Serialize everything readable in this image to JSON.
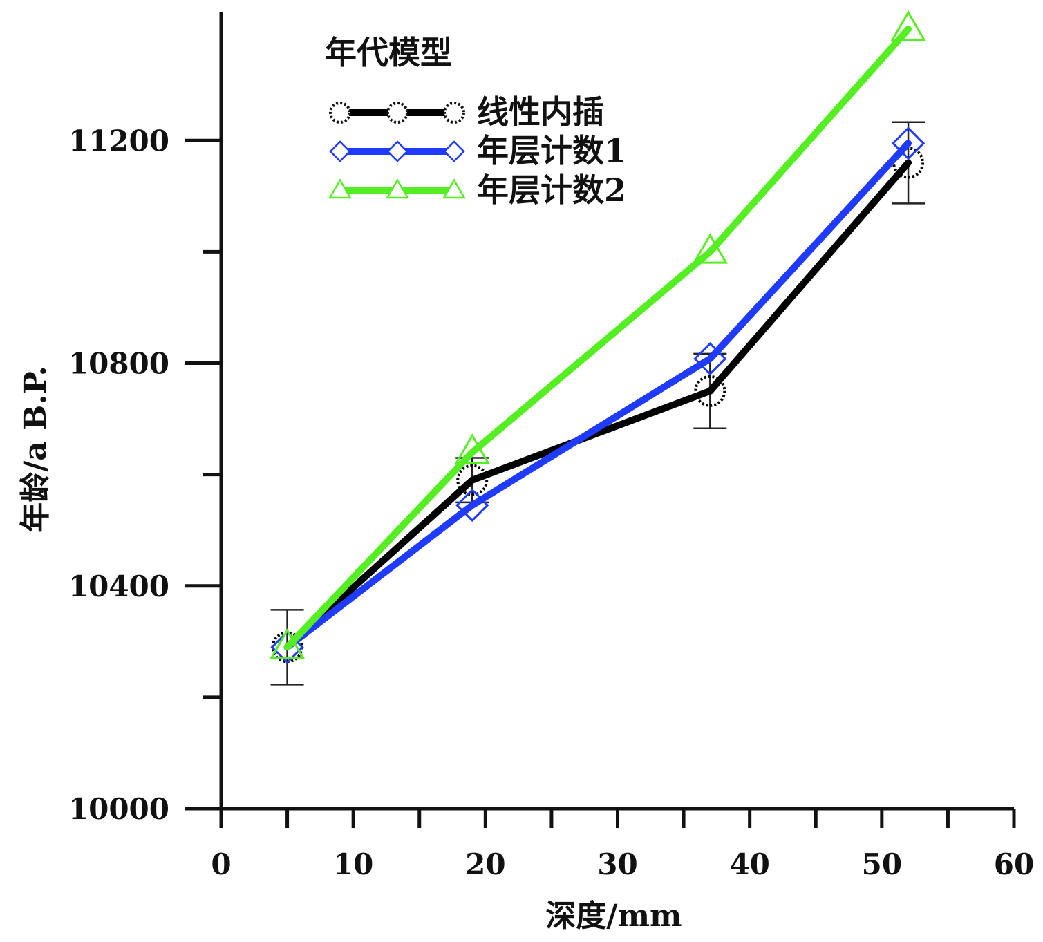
{
  "chart_data": {
    "type": "line",
    "title": "",
    "xlabel": "深度/mm",
    "ylabel": "年龄/a B.P.",
    "xlim": [
      0,
      60
    ],
    "ylim": [
      10000,
      11430
    ],
    "x_ticks_major": [
      0,
      10,
      20,
      30,
      40,
      50,
      60
    ],
    "x_ticks_minor": [
      5,
      15,
      25,
      35,
      45,
      55
    ],
    "y_ticks_major": [
      10000,
      10400,
      10800,
      11200
    ],
    "y_ticks_minor": [
      10200,
      10600,
      11000
    ],
    "y_tick_labels": [
      "10000",
      "10400",
      "10800",
      "11200"
    ],
    "x_tick_labels": [
      "0",
      "10",
      "20",
      "30",
      "40",
      "50",
      "60"
    ],
    "grid": false,
    "legend": {
      "title": "年代模型",
      "position": "top-left"
    },
    "series": [
      {
        "name": "线性内插",
        "color": "#000000",
        "marker": "circle-open",
        "x": [
          5,
          19,
          37,
          52
        ],
        "y": [
          10290,
          10590,
          10750,
          11160
        ],
        "error": [
          67,
          40,
          67,
          73
        ]
      },
      {
        "name": "年层计数1",
        "color": "#1f3bff",
        "marker": "diamond-open",
        "x": [
          5,
          19,
          37,
          52
        ],
        "y": [
          10290,
          10545,
          10808,
          11195
        ]
      },
      {
        "name": "年层计数2",
        "color": "#55ee22",
        "marker": "triangle-open",
        "x": [
          5,
          19,
          37,
          52
        ],
        "y": [
          10290,
          10640,
          11000,
          11400
        ]
      }
    ]
  }
}
